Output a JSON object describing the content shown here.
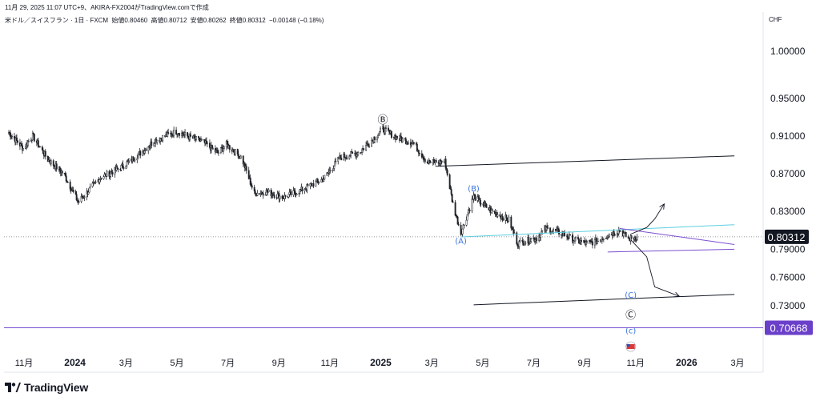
{
  "header": {
    "timestamp_line": "11月 29, 2025 11:07 UTC+9、AKIRA-FX2004がTradingView.comで作成"
  },
  "symbol": {
    "name": "米ドル／スイスフラン · 1日 · FXCM",
    "open": "始値0.80460",
    "high": "高値0.80712",
    "low": "安値0.80262",
    "close": "終値0.80312",
    "change": "−0.00148 (−0.18%)"
  },
  "currency": "CHF",
  "brand": {
    "name": "TradingView"
  },
  "colors": {
    "candles": "#1f2227",
    "price_badge": "#131722",
    "target_badge": "#6a3fc9",
    "purple": "#7b4fd1",
    "cyan": "#5ccfe0",
    "wave_blue": "#3a73e0",
    "trend": "#131722"
  },
  "chart_data": {
    "type": "candlestick",
    "instrument": "USD/CHF",
    "timeframe": "1D",
    "y_ticks": [
      "1.00000",
      "0.95000",
      "0.91000",
      "0.87000",
      "0.83000",
      "0.79000",
      "0.76000",
      "0.73000"
    ],
    "y_tick_values": [
      1.0,
      0.95,
      0.91,
      0.87,
      0.83,
      0.79,
      0.76,
      0.73
    ],
    "x_ticks": [
      {
        "label": "11月",
        "bold": false
      },
      {
        "label": "2024",
        "bold": true
      },
      {
        "label": "3月",
        "bold": false
      },
      {
        "label": "5月",
        "bold": false
      },
      {
        "label": "7月",
        "bold": false
      },
      {
        "label": "9月",
        "bold": false
      },
      {
        "label": "11月",
        "bold": false
      },
      {
        "label": "2025",
        "bold": true
      },
      {
        "label": "3月",
        "bold": false
      },
      {
        "label": "5月",
        "bold": false
      },
      {
        "label": "7月",
        "bold": false
      },
      {
        "label": "9月",
        "bold": false
      },
      {
        "label": "11月",
        "bold": false
      },
      {
        "label": "2026",
        "bold": true
      },
      {
        "label": "3月",
        "bold": false
      }
    ],
    "x_range": [
      "2023-10-01",
      "2026-04-30"
    ],
    "current_price": "0.80312",
    "target_line": "0.70668",
    "price_path": [
      [
        "2023-10-02",
        0.914
      ],
      [
        "2023-10-20",
        0.897
      ],
      [
        "2023-11-01",
        0.91
      ],
      [
        "2023-11-20",
        0.885
      ],
      [
        "2023-12-10",
        0.87
      ],
      [
        "2023-12-28",
        0.84
      ],
      [
        "2024-01-25",
        0.866
      ],
      [
        "2024-02-20",
        0.877
      ],
      [
        "2024-03-15",
        0.892
      ],
      [
        "2024-04-01",
        0.905
      ],
      [
        "2024-04-30",
        0.915
      ],
      [
        "2024-05-15",
        0.909
      ],
      [
        "2024-06-01",
        0.904
      ],
      [
        "2024-06-20",
        0.892
      ],
      [
        "2024-07-01",
        0.901
      ],
      [
        "2024-07-20",
        0.887
      ],
      [
        "2024-08-05",
        0.849
      ],
      [
        "2024-08-20",
        0.851
      ],
      [
        "2024-09-10",
        0.845
      ],
      [
        "2024-10-01",
        0.852
      ],
      [
        "2024-10-31",
        0.865
      ],
      [
        "2024-11-20",
        0.887
      ],
      [
        "2024-12-15",
        0.893
      ],
      [
        "2025-01-13",
        0.917
      ],
      [
        "2025-02-03",
        0.907
      ],
      [
        "2025-02-20",
        0.903
      ],
      [
        "2025-03-10",
        0.882
      ],
      [
        "2025-04-01",
        0.883
      ],
      [
        "2025-04-11",
        0.838
      ],
      [
        "2025-04-21",
        0.807
      ],
      [
        "2025-05-07",
        0.846
      ],
      [
        "2025-05-28",
        0.831
      ],
      [
        "2025-06-20",
        0.821
      ],
      [
        "2025-07-01",
        0.796
      ],
      [
        "2025-07-25",
        0.802
      ],
      [
        "2025-08-05",
        0.812
      ],
      [
        "2025-08-25",
        0.807
      ],
      [
        "2025-09-10",
        0.8
      ],
      [
        "2025-09-25",
        0.796
      ],
      [
        "2025-10-10",
        0.799
      ],
      [
        "2025-10-22",
        0.805
      ],
      [
        "2025-11-06",
        0.81
      ],
      [
        "2025-11-18",
        0.801
      ],
      [
        "2025-11-28",
        0.803
      ]
    ],
    "annotations": [
      {
        "type": "wave-label",
        "text": "Ⓑ",
        "at": [
          "2025-01-13",
          0.927
        ]
      },
      {
        "type": "wave-label",
        "text": "(B)",
        "at": [
          "2025-05-07",
          0.855
        ],
        "color": "blue"
      },
      {
        "type": "wave-label",
        "text": "(A)",
        "at": [
          "2025-04-21",
          0.799
        ],
        "color": "blue"
      },
      {
        "type": "wave-label",
        "text": "(C)",
        "at": [
          "2025-11-20",
          0.742
        ],
        "color": "blue"
      },
      {
        "type": "wave-label",
        "text": "Ⓒ",
        "at": [
          "2025-11-20",
          0.72
        ]
      },
      {
        "type": "wave-label",
        "text": "(c)",
        "at": [
          "2025-11-20",
          0.704
        ],
        "color": "blue"
      }
    ],
    "trendlines": [
      {
        "color": "trend",
        "from": [
          "2025-03-20",
          0.878
        ],
        "to": [
          "2026-03-30",
          0.889
        ]
      },
      {
        "color": "cyan",
        "from": [
          "2025-04-21",
          0.803
        ],
        "to": [
          "2026-03-30",
          0.816
        ]
      },
      {
        "color": "purple",
        "from": [
          "2025-10-22",
          0.787
        ],
        "to": [
          "2026-03-30",
          0.79
        ]
      },
      {
        "color": "purple",
        "from": [
          "2025-11-06",
          0.812
        ],
        "to": [
          "2026-03-30",
          0.795
        ]
      },
      {
        "color": "trend",
        "from": [
          "2025-05-07",
          0.731
        ],
        "to": [
          "2026-03-30",
          0.742
        ]
      }
    ],
    "projection_up": [
      [
        "2025-11-20",
        0.806
      ],
      [
        "2025-12-10",
        0.813
      ],
      [
        "2025-12-20",
        0.822
      ],
      [
        "2026-01-01",
        0.838
      ]
    ],
    "projection_down": [
      [
        "2025-11-20",
        0.8
      ],
      [
        "2025-12-10",
        0.782
      ],
      [
        "2025-12-20",
        0.75
      ],
      [
        "2026-01-20",
        0.74
      ]
    ],
    "grid": false,
    "legend": "none"
  }
}
